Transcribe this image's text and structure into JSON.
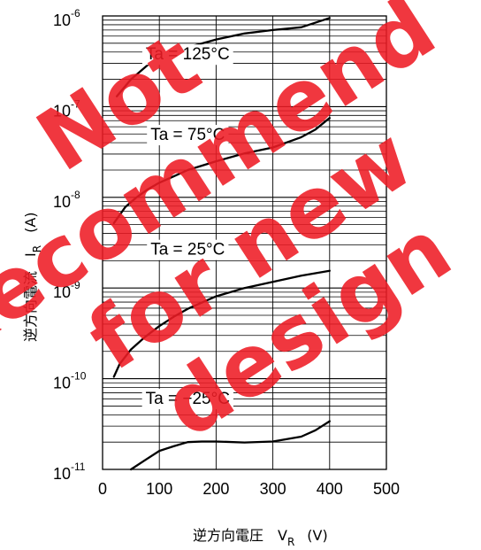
{
  "chart_data": {
    "type": "line",
    "title": "",
    "xlabel": "逆方向電圧　V",
    "xlabel_sub": "R",
    "xlabel_unit": "(V)",
    "ylabel": "逆方向電流　I",
    "ylabel_sub": "R",
    "ylabel_unit": "(A)",
    "xlim": [
      0,
      500
    ],
    "ylim": [
      1e-11,
      1e-06
    ],
    "yscale": "log",
    "grid": true,
    "x_ticks": [
      {
        "value": 0,
        "label": "0"
      },
      {
        "value": 100,
        "label": "100"
      },
      {
        "value": 200,
        "label": "200"
      },
      {
        "value": 300,
        "label": "300"
      },
      {
        "value": 400,
        "label": "400"
      },
      {
        "value": 500,
        "label": "500"
      }
    ],
    "y_ticks": [
      {
        "value": 1e-06,
        "base": "10",
        "exp": "-6"
      },
      {
        "value": 1e-07,
        "base": "10",
        "exp": "-7"
      },
      {
        "value": 1e-08,
        "base": "10",
        "exp": "-8"
      },
      {
        "value": 1e-09,
        "base": "10",
        "exp": "-9"
      },
      {
        "value": 1e-10,
        "base": "10",
        "exp": "-10"
      },
      {
        "value": 1e-11,
        "base": "10",
        "exp": "-11"
      }
    ],
    "series": [
      {
        "name": "Ta = 125°C",
        "label_at": [
          150,
          3.7e-07
        ],
        "x": [
          25,
          50,
          80,
          100,
          125,
          150,
          200,
          250,
          300,
          350,
          400
        ],
        "y": [
          1.3e-07,
          2e-07,
          2.9e-07,
          3.4e-07,
          4e-07,
          4.5e-07,
          5.5e-07,
          6.4e-07,
          7e-07,
          7.5e-07,
          9.5e-07
        ]
      },
      {
        "name": "Ta = 75°C",
        "label_at": [
          150,
          4.8e-08
        ],
        "x": [
          20,
          40,
          60,
          80,
          100,
          125,
          150,
          200,
          250,
          300,
          350,
          375,
          400
        ],
        "y": [
          5.2e-09,
          7.8e-09,
          1e-08,
          1.23e-08,
          1.45e-08,
          1.7e-08,
          2e-08,
          2.5e-08,
          3.05e-08,
          3.55e-08,
          4.6e-08,
          5.6e-08,
          7.5e-08
        ]
      },
      {
        "name": "Ta = 25°C",
        "label_at": [
          150,
          2.6e-09
        ],
        "x": [
          20,
          30,
          50,
          75,
          100,
          125,
          150,
          200,
          250,
          300,
          350,
          400
        ],
        "y": [
          1.05e-10,
          1.45e-10,
          2.1e-10,
          2.9e-10,
          3.8e-10,
          4.8e-10,
          5.9e-10,
          8.1e-10,
          1e-09,
          1.17e-09,
          1.37e-09,
          1.55e-09
        ]
      },
      {
        "name": "Ta = −25°C",
        "label_at": [
          150,
          5.9e-11
        ],
        "x": [
          50,
          75,
          100,
          125,
          150,
          175,
          200,
          250,
          300,
          350,
          375,
          400
        ],
        "y": [
          1e-11,
          1.27e-11,
          1.6e-11,
          1.8e-11,
          2e-11,
          2.03e-11,
          2.03e-11,
          1.98e-11,
          2.03e-11,
          2.3e-11,
          2.7e-11,
          3.4e-11
        ]
      }
    ]
  },
  "watermark": {
    "lines": [
      "Not",
      "Recommend",
      "for new",
      "design"
    ],
    "color": "#ee1c25"
  }
}
